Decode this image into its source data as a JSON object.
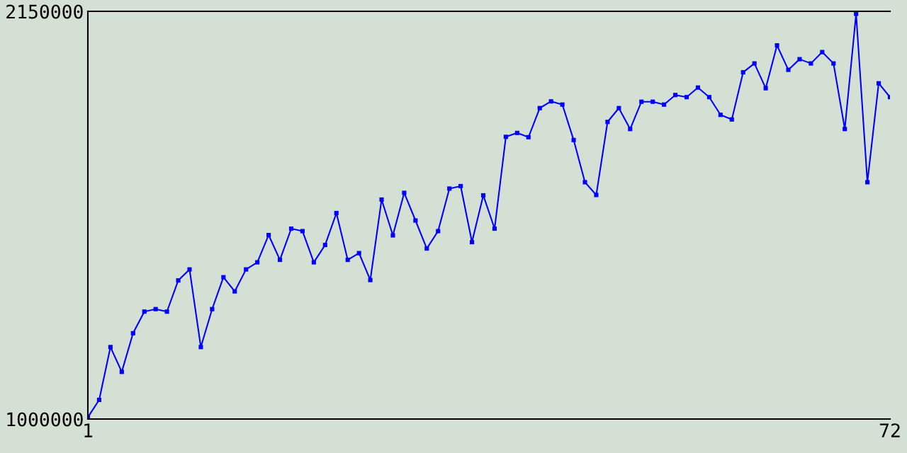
{
  "chart_data": {
    "type": "line",
    "x": [
      1,
      2,
      3,
      4,
      5,
      6,
      7,
      8,
      9,
      10,
      11,
      12,
      13,
      14,
      15,
      16,
      17,
      18,
      19,
      20,
      21,
      22,
      23,
      24,
      25,
      26,
      27,
      28,
      29,
      30,
      31,
      32,
      33,
      34,
      35,
      36,
      37,
      38,
      39,
      40,
      41,
      42,
      43,
      44,
      45,
      46,
      47,
      48,
      49,
      50,
      51,
      52,
      53,
      54,
      55,
      56,
      57,
      58,
      59,
      60,
      61,
      62,
      63,
      64,
      65,
      66,
      67,
      68,
      69,
      70,
      71,
      72
    ],
    "series": [
      {
        "color": "#0000ff",
        "values": [
          1005000,
          1054000,
          1203000,
          1133000,
          1242000,
          1303000,
          1310000,
          1303000,
          1391000,
          1422000,
          1203000,
          1310000,
          1400000,
          1360000,
          1422000,
          1442000,
          1519000,
          1449000,
          1537000,
          1530000,
          1442000,
          1491000,
          1581000,
          1449000,
          1468000,
          1392000,
          1619000,
          1518000,
          1638000,
          1560000,
          1481000,
          1530000,
          1650000,
          1657000,
          1499000,
          1631000,
          1537000,
          1796000,
          1807000,
          1795000,
          1877000,
          1896000,
          1887000,
          1787000,
          1668000,
          1632000,
          1838000,
          1877000,
          1818000,
          1895000,
          1895000,
          1887000,
          1914000,
          1908000,
          1935000,
          1908000,
          1858000,
          1845000,
          1978000,
          2003000,
          1933000,
          2054000,
          1985000,
          2015000,
          2003000,
          2035000,
          2003000,
          1818000,
          2143000,
          1668000,
          1947000,
          1908000
        ]
      }
    ],
    "xlim": [
      1,
      72
    ],
    "ylim": [
      1000000,
      2150000
    ],
    "xticks": [
      1,
      72
    ],
    "yticks": [
      1000000,
      2150000
    ],
    "marker": "square",
    "line_style": "solid",
    "grid": false,
    "legend": false
  }
}
